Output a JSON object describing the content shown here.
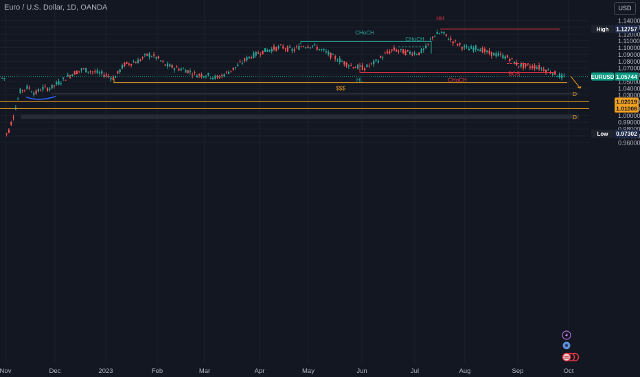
{
  "header": {
    "title": "Euro / U.S. Dollar, 1D, OANDA",
    "currency_button": "USD"
  },
  "colors": {
    "background": "#131722",
    "bull": "#26a69a",
    "bear": "#ef5350",
    "choch_teal": "#26a69a",
    "red_line": "#f23645",
    "orange_line": "#f0a020",
    "zone": "#2a2e39",
    "blue_curve": "#2962ff",
    "price_label": "#089981",
    "high_low_label": "#1e2a4a"
  },
  "chart_data": {
    "type": "candlestick",
    "symbol": "EURUSD",
    "timeframe": "1D",
    "source": "OANDA",
    "y_axis": {
      "ticks": [
        "1.14000",
        "1.13000",
        "1.12000",
        "1.11000",
        "1.10000",
        "1.09000",
        "1.08000",
        "1.07000",
        "1.06000",
        "1.05000",
        "1.04000",
        "1.03000",
        "1.02000",
        "1.01000",
        "1.00000",
        "0.99000",
        "0.98000",
        "0.97000",
        "0.96000"
      ],
      "range": [
        0.952,
        1.148
      ]
    },
    "x_axis": {
      "ticks": [
        "Nov",
        "Dec",
        "2023",
        "Feb",
        "Mar",
        "Apr",
        "May",
        "Jun",
        "Jul",
        "Aug",
        "Sep",
        "Oct"
      ]
    },
    "price_labels": [
      {
        "name": "High",
        "value": "1.12757"
      },
      {
        "name": "EURUSD",
        "value": "1.05744"
      },
      {
        "name": "",
        "value": "1.02019"
      },
      {
        "name": "",
        "value": "1.01006"
      },
      {
        "name": "Low",
        "value": "0.97302"
      }
    ],
    "annotations": {
      "hh": "HH",
      "choch_1": "CHoCH",
      "choch_2": "CHoCH",
      "choch_red": "CHoCH",
      "hl": "HL",
      "bos": "BOS",
      "liquidity": "$$$",
      "demand_1": "D",
      "demand_2": "D"
    },
    "levels": {
      "hh": 1.12757,
      "choch_1": 1.1093,
      "choch_2": 1.1013,
      "choch_red": 1.0636,
      "bos": 1.0767,
      "liquidity": 1.0483,
      "line_1": 1.02019,
      "line_2": 1.01006,
      "zone_1": [
        1.0309,
        1.0333
      ],
      "zone_2": [
        0.9946,
        1.0012
      ],
      "current": 1.05744
    }
  }
}
